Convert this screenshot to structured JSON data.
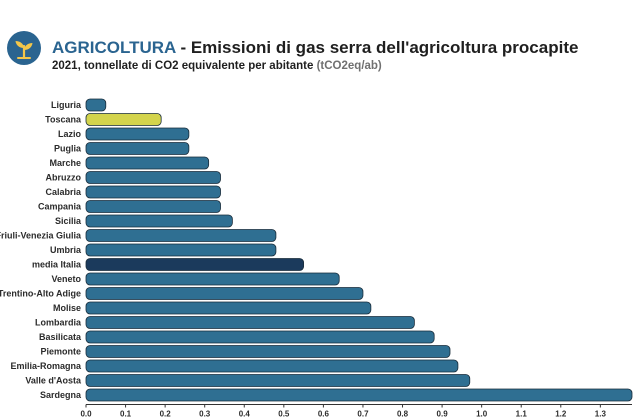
{
  "header": {
    "category": "AGRICOLTURA",
    "separator": " - ",
    "title": "Emissioni di gas serra dell'agricoltura procapite",
    "subtitle": "2021, tonnellate di CO2 equivalente per abitante",
    "unit": "(tCO2eq/ab)"
  },
  "logo": {
    "icon": "sprout-icon",
    "background": "#2a6490",
    "color": "#f2c64a"
  },
  "colors": {
    "default": "#2f6f92",
    "toscana": "#d3d44c",
    "media_italia": "#1b3a5c",
    "stroke": "#1a2d3b"
  },
  "chart_data": {
    "type": "bar",
    "orientation": "horizontal",
    "categories": [
      "Liguria",
      "Toscana",
      "Lazio",
      "Puglia",
      "Marche",
      "Abruzzo",
      "Calabria",
      "Campania",
      "Sicilia",
      "Friuli-Venezia Giulia",
      "Umbria",
      "media Italia",
      "Veneto",
      "Trentino-Alto Adige",
      "Molise",
      "Lombardia",
      "Basilicata",
      "Piemonte",
      "Emilia-Romagna",
      "Valle d'Aosta",
      "Sardegna"
    ],
    "values": [
      0.05,
      0.19,
      0.26,
      0.26,
      0.31,
      0.34,
      0.34,
      0.34,
      0.37,
      0.48,
      0.48,
      0.55,
      0.64,
      0.7,
      0.72,
      0.83,
      0.88,
      0.92,
      0.94,
      0.97,
      1.38
    ],
    "highlight": {
      "Toscana": "toscana",
      "media Italia": "media_italia"
    },
    "xlim": [
      0,
      1.38
    ],
    "xticks": [
      "0.0",
      "0.1",
      "0.2",
      "0.3",
      "0.4",
      "0.5",
      "0.6",
      "0.7",
      "0.8",
      "0.9",
      "1.0",
      "1.1",
      "1.2",
      "1.3"
    ],
    "grid": false,
    "legend": "none"
  }
}
